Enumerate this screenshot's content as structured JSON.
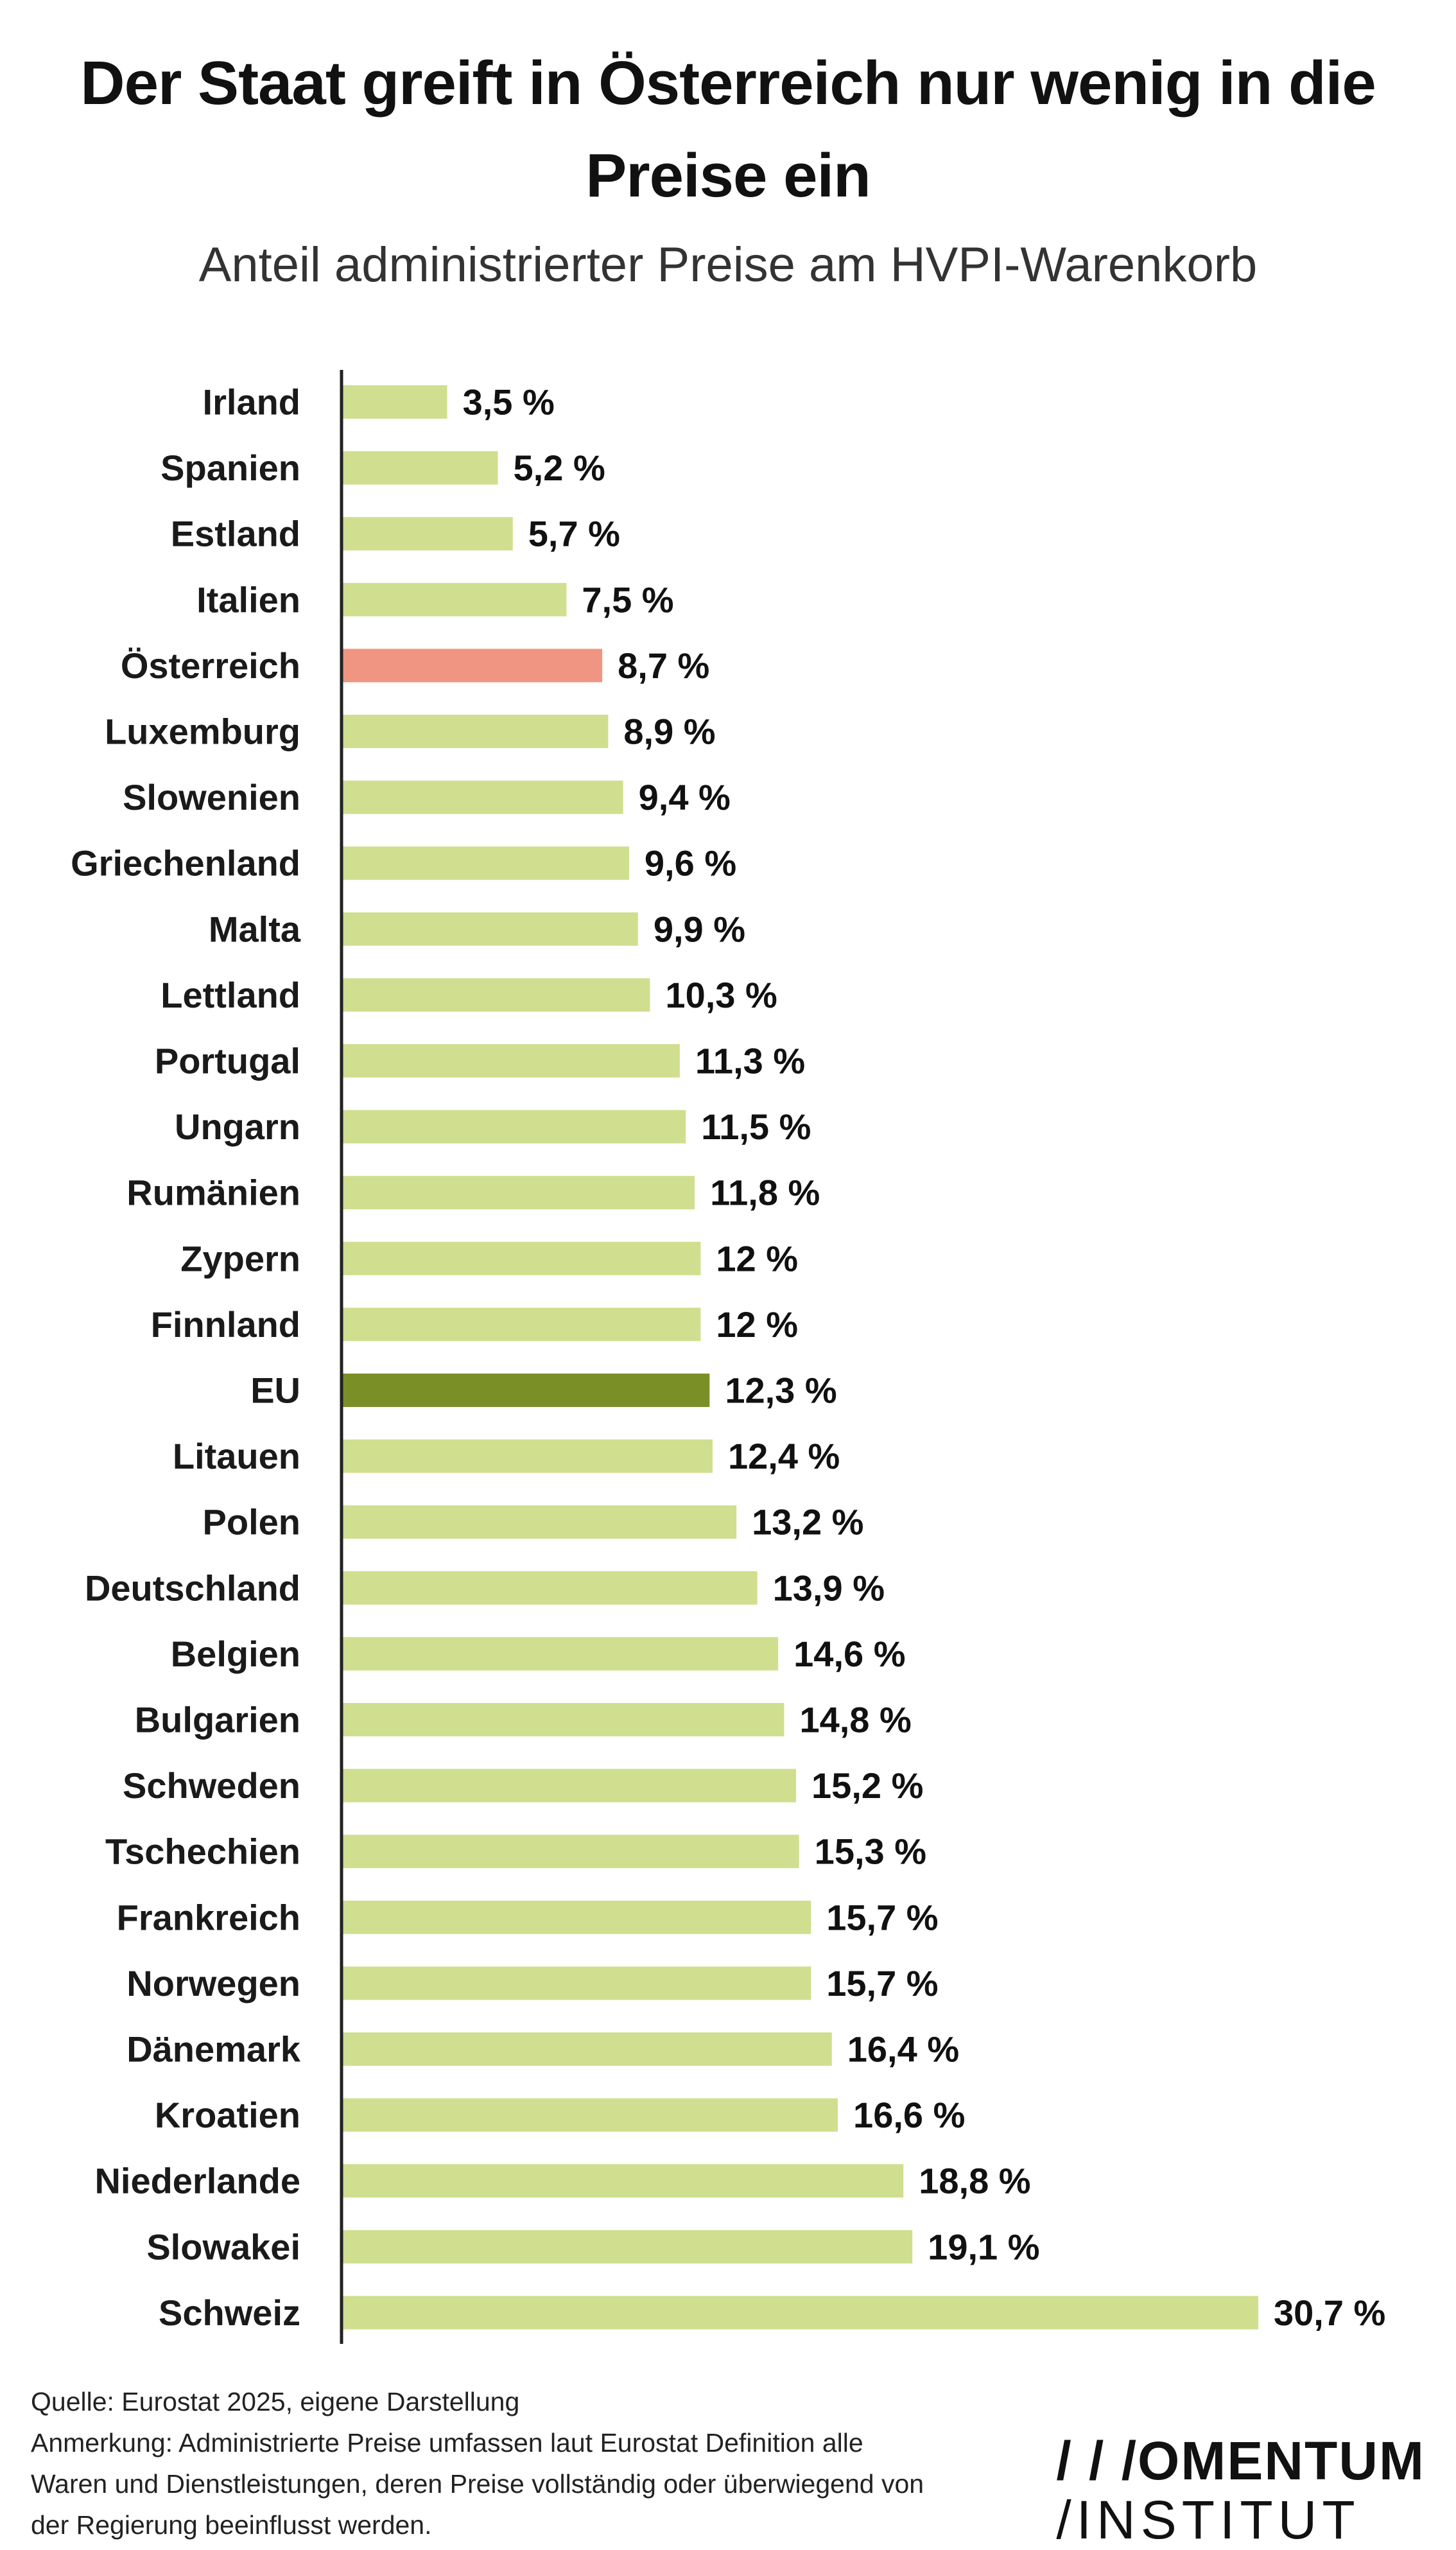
{
  "title_lines": [
    "Der Staat greift in Österreich nur wenig in die",
    "Preise ein"
  ],
  "subtitle": "Anteil administrierter Preise am HVPI-Warenkorb",
  "chart_data": {
    "type": "bar",
    "orientation": "horizontal",
    "title": "Der Staat greift in Österreich nur wenig in die Preise ein",
    "subtitle": "Anteil administrierter Preise am HVPI-Warenkorb",
    "categories": [
      "Irland",
      "Spanien",
      "Estland",
      "Italien",
      "Österreich",
      "Luxemburg",
      "Slowenien",
      "Griechenland",
      "Malta",
      "Lettland",
      "Portugal",
      "Ungarn",
      "Rumänien",
      "Zypern",
      "Finnland",
      "EU",
      "Litauen",
      "Polen",
      "Deutschland",
      "Belgien",
      "Bulgarien",
      "Schweden",
      "Tschechien",
      "Frankreich",
      "Norwegen",
      "Dänemark",
      "Kroatien",
      "Niederlande",
      "Slowakei",
      "Schweiz"
    ],
    "values": [
      3.5,
      5.2,
      5.7,
      7.5,
      8.7,
      8.9,
      9.4,
      9.6,
      9.9,
      10.3,
      11.3,
      11.5,
      11.8,
      12,
      12,
      12.3,
      12.4,
      13.2,
      13.9,
      14.6,
      14.8,
      15.2,
      15.3,
      15.7,
      15.7,
      16.4,
      16.6,
      18.8,
      19.1,
      30.7
    ],
    "value_labels": [
      "3,5 %",
      "5,2 %",
      "5,7 %",
      "7,5 %",
      "8,7 %",
      "8,9 %",
      "9,4 %",
      "9,6 %",
      "9,9 %",
      "10,3 %",
      "11,3 %",
      "11,5 %",
      "11,8 %",
      "12 %",
      "12 %",
      "12,3 %",
      "12,4 %",
      "13,2 %",
      "13,9 %",
      "14,6 %",
      "14,8 %",
      "15,2 %",
      "15,3 %",
      "15,7 %",
      "15,7 %",
      "16,4 %",
      "16,6 %",
      "18,8 %",
      "19,1 %",
      "30,7 %"
    ],
    "unit": "%",
    "xlim": [
      0,
      30.7
    ],
    "grid": false,
    "legend": "none",
    "colors": {
      "default": "#cfdf8f",
      "highlight": {
        "Österreich": "#ef9581",
        "EU": "#7a8f26"
      }
    }
  },
  "footnotes": {
    "source": "Quelle: Eurostat 2025, eigene Darstellung",
    "note_lines": [
      "Anmerkung: Administrierte  Preise umfassen laut Eurostat Definition alle",
      "Waren und Dienstleistungen, deren Preise vollständig oder überwiegend von",
      "der Regierung  beeinflusst werden."
    ]
  },
  "logo": {
    "line1": "/ / /OMENTUM",
    "line2": "/INSTITUT"
  }
}
